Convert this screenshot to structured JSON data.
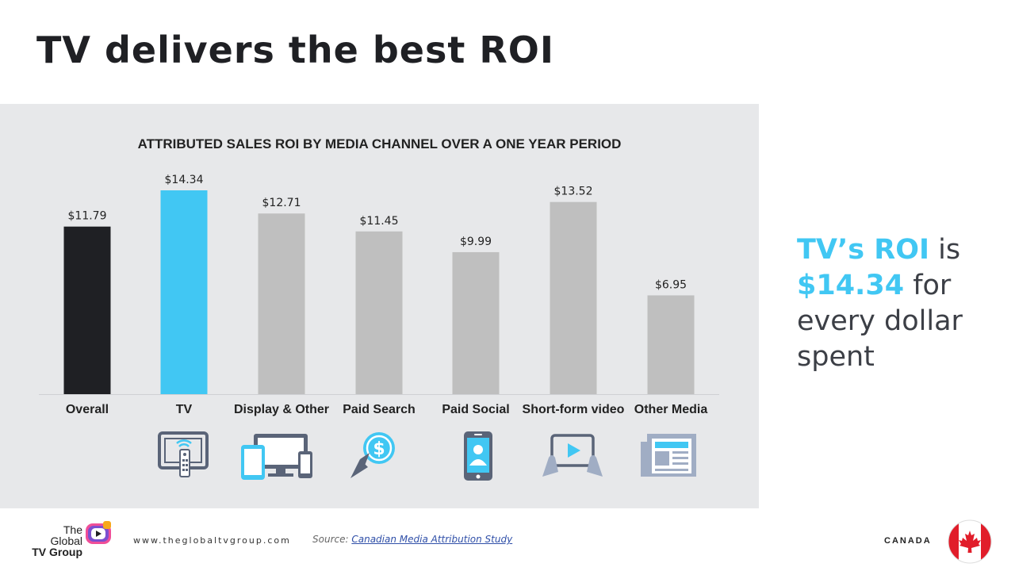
{
  "page": {
    "title": "TV delivers the best ROI"
  },
  "chart_data": {
    "type": "bar",
    "title": "ATTRIBUTED SALES ROI BY MEDIA CHANNEL OVER A ONE YEAR PERIOD",
    "categories": [
      "Overall",
      "TV",
      "Display & Other",
      "Paid Search",
      "Paid Social",
      "Short-form video",
      "Other Media"
    ],
    "values": [
      11.79,
      14.34,
      12.71,
      11.45,
      9.99,
      13.52,
      6.95
    ],
    "value_labels": [
      "$11.79",
      "$14.34",
      "$12.71",
      "$11.45",
      "$9.99",
      "$13.52",
      "$6.95"
    ],
    "bar_colors": [
      "#1f2024",
      "#41c7f3",
      "#bfbfbf",
      "#bfbfbf",
      "#bfbfbf",
      "#bfbfbf",
      "#bfbfbf"
    ],
    "ylim": [
      0,
      14.34
    ],
    "grid": false,
    "legend": "none",
    "xlabel": "",
    "ylabel": ""
  },
  "icons": [
    "tv-remote-icon",
    "devices-icon",
    "dollar-click-icon",
    "smartphone-user-icon",
    "tablet-video-icon",
    "newspaper-icon"
  ],
  "callout": {
    "part1": "TV’s ROI",
    "part2": " is ",
    "part3": "$14.34",
    "part4": " for every dollar spent"
  },
  "footer": {
    "logo_line1": "The",
    "logo_line2": "Global",
    "logo_line3": "TV Group",
    "website": "www.theglobaltvgroup.com",
    "source_label": "Source:",
    "source_link": "Canadian Media Attribution Study",
    "country": "CANADA"
  },
  "colors": {
    "accent": "#41c7f3",
    "dark": "#1f2024",
    "bar_grey": "#bfbfbf",
    "panel": "#e7e8ea",
    "icon_slate": "#5a6478"
  }
}
